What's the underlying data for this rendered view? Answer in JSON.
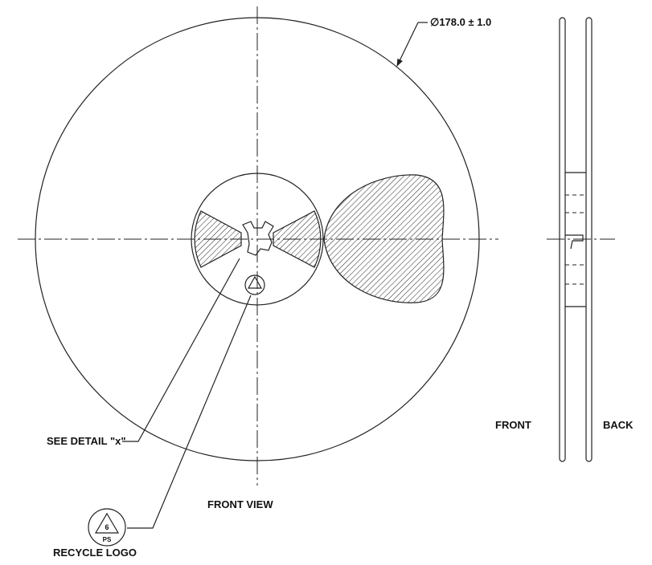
{
  "dimension": "∅178.0 ± 1.0",
  "callouts": {
    "detail": "SEE DETAIL \"x\"",
    "recycle": "RECYCLE LOGO"
  },
  "views": {
    "front_view": "FRONT VIEW",
    "front": "FRONT",
    "back": "BACK"
  },
  "logo": {
    "number": "6",
    "code": "PS"
  }
}
